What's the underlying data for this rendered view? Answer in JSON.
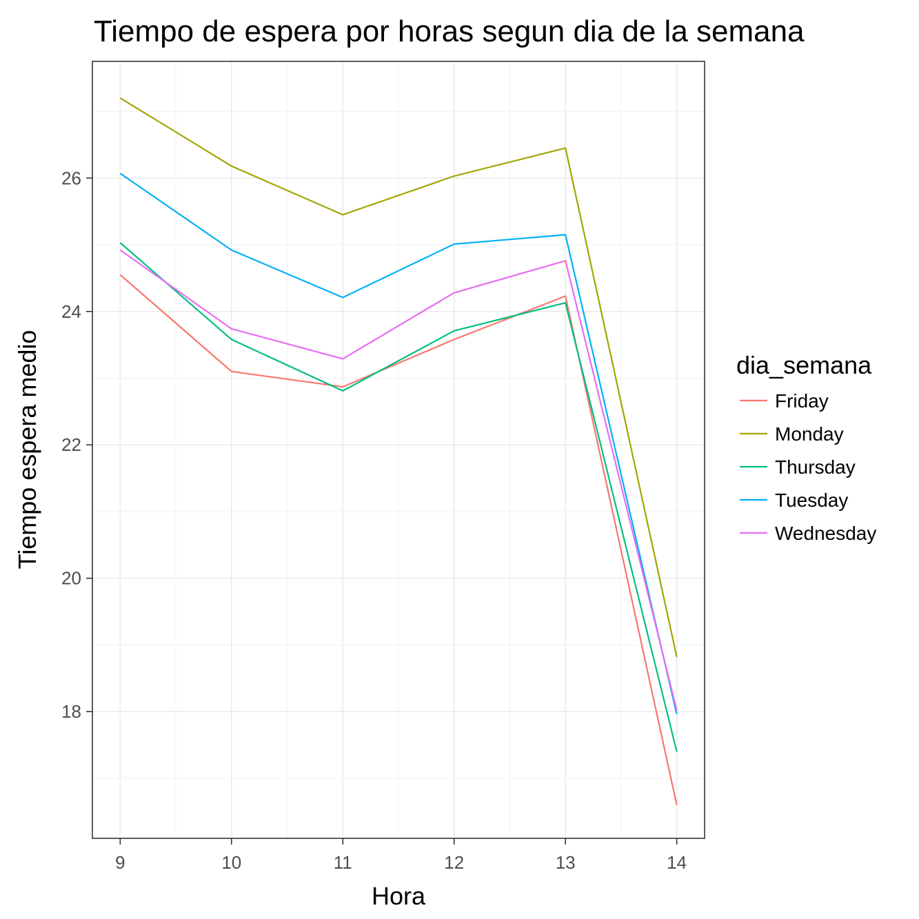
{
  "chart_data": {
    "type": "line",
    "title": "Tiempo de espera por horas segun dia de la semana",
    "xlabel": "Hora",
    "ylabel": "Tiempo espera medio",
    "x": [
      9,
      10,
      11,
      12,
      13,
      14
    ],
    "xlim": [
      8.75,
      14.25
    ],
    "ylim": [
      16.1,
      27.75
    ],
    "x_ticks": [
      9,
      10,
      11,
      12,
      13,
      14
    ],
    "y_ticks": [
      18,
      20,
      22,
      24,
      26
    ],
    "grid": true,
    "legend_title": "dia_semana",
    "legend_position": "right",
    "series": [
      {
        "name": "Friday",
        "color": "#F8766D",
        "values": [
          24.55,
          23.1,
          22.87,
          23.58,
          24.23,
          16.6
        ]
      },
      {
        "name": "Monday",
        "color": "#A3A500",
        "values": [
          27.2,
          26.18,
          25.45,
          26.03,
          26.45,
          18.82
        ]
      },
      {
        "name": "Thursday",
        "color": "#00BF7D",
        "values": [
          25.03,
          23.58,
          22.81,
          23.71,
          24.13,
          17.4
        ]
      },
      {
        "name": "Tuesday",
        "color": "#00B0F6",
        "values": [
          26.07,
          24.92,
          24.21,
          25.01,
          25.15,
          17.96
        ]
      },
      {
        "name": "Wednesday",
        "color": "#E76BF3",
        "values": [
          24.92,
          23.74,
          23.29,
          24.28,
          24.76,
          18.02
        ]
      }
    ]
  }
}
